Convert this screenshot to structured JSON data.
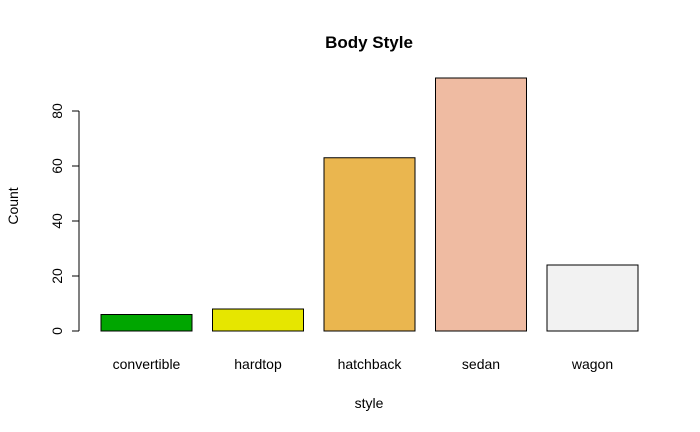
{
  "chart_data": {
    "type": "bar",
    "title": "Body Style",
    "xlabel": "style",
    "ylabel": "Count",
    "categories": [
      "convertible",
      "hardtop",
      "hatchback",
      "sedan",
      "wagon"
    ],
    "values": [
      6,
      8,
      63,
      92,
      24
    ],
    "colors": [
      "#00a600",
      "#e6e600",
      "#eab64f",
      "#efbba2",
      "#f2f2f2"
    ],
    "yticks": [
      0,
      20,
      40,
      60,
      80
    ],
    "ylim": [
      0,
      92
    ],
    "grid": false,
    "legend": "none"
  }
}
